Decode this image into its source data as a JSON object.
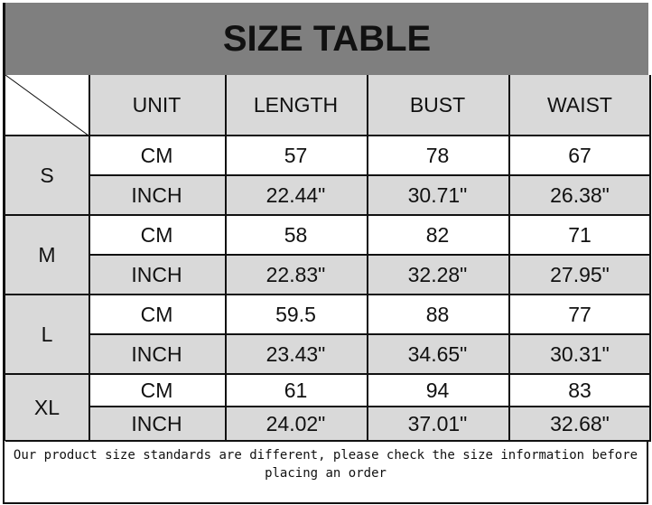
{
  "title": "SIZE TABLE",
  "headers": [
    "UNIT",
    "LENGTH",
    "BUST",
    "WAIST"
  ],
  "sizes": [
    {
      "size": "S",
      "rows": [
        [
          "CM",
          "57",
          "78",
          "67"
        ],
        [
          "INCH",
          "22.44\"",
          "30.71\"",
          "26.38\""
        ]
      ]
    },
    {
      "size": "M",
      "rows": [
        [
          "CM",
          "58",
          "82",
          "71"
        ],
        [
          "INCH",
          "22.83\"",
          "32.28\"",
          "27.95\""
        ]
      ]
    },
    {
      "size": "L",
      "rows": [
        [
          "CM",
          "59.5",
          "88",
          "77"
        ],
        [
          "INCH",
          "23.43\"",
          "34.65\"",
          "30.31\""
        ]
      ]
    },
    {
      "size": "XL",
      "rows": [
        [
          "CM",
          "61",
          "94",
          "83"
        ],
        [
          "INCH",
          "24.02\"",
          "37.01\"",
          "32.68\""
        ]
      ]
    }
  ],
  "note": "Our product size standards are different, please check the size information before placing an order",
  "colors": {
    "title_bg": "#7f7f7f",
    "cell_gray": "#d9d9d9"
  }
}
